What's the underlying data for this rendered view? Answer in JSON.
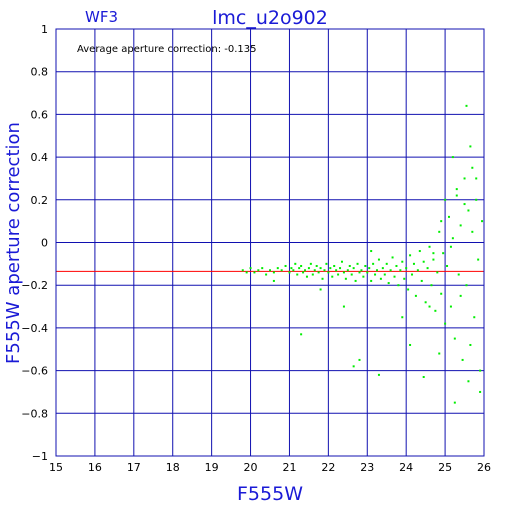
{
  "chart_data": {
    "type": "scatter",
    "panel_label": "WF3",
    "title": "lmc_u2o902",
    "annotation": "Average aperture correction: -0.135",
    "xlabel": "F555W",
    "ylabel": "F555W aperture correction",
    "xlim": [
      15,
      26
    ],
    "ylim": [
      -1,
      1
    ],
    "x_ticks": [
      "15",
      "16",
      "17",
      "18",
      "19",
      "20",
      "21",
      "22",
      "23",
      "24",
      "25",
      "26"
    ],
    "y_ticks": [
      "1",
      "0.8",
      "0.6",
      "0.4",
      "0.2",
      "0",
      "−0.2",
      "−0.4",
      "−0.6",
      "−0.8",
      "−1"
    ],
    "grid": true,
    "reference_line": {
      "y": -0.135,
      "color": "#ff0000"
    },
    "colors": {
      "points": "#00ee00",
      "grid": "#1010b0",
      "labels": "#1a1ad6"
    },
    "series": [
      {
        "values": [
          [
            19.8,
            -0.13
          ],
          [
            19.9,
            -0.14
          ],
          [
            20.0,
            -0.12
          ],
          [
            20.1,
            -0.14
          ],
          [
            20.2,
            -0.13
          ],
          [
            20.3,
            -0.12
          ],
          [
            20.4,
            -0.15
          ],
          [
            20.5,
            -0.13
          ],
          [
            20.6,
            -0.14
          ],
          [
            20.7,
            -0.12
          ],
          [
            20.8,
            -0.13
          ],
          [
            20.9,
            -0.11
          ],
          [
            21.0,
            -0.14
          ],
          [
            21.05,
            -0.12
          ],
          [
            21.1,
            -0.13
          ],
          [
            21.15,
            -0.1
          ],
          [
            21.2,
            -0.15
          ],
          [
            21.25,
            -0.12
          ],
          [
            21.3,
            -0.11
          ],
          [
            21.35,
            -0.14
          ],
          [
            21.4,
            -0.13
          ],
          [
            21.45,
            -0.16
          ],
          [
            21.5,
            -0.12
          ],
          [
            21.55,
            -0.1
          ],
          [
            21.6,
            -0.15
          ],
          [
            21.65,
            -0.13
          ],
          [
            21.7,
            -0.11
          ],
          [
            21.75,
            -0.14
          ],
          [
            21.8,
            -0.12
          ],
          [
            21.85,
            -0.17
          ],
          [
            21.9,
            -0.13
          ],
          [
            21.95,
            -0.1
          ],
          [
            22.0,
            -0.14
          ],
          [
            22.05,
            -0.12
          ],
          [
            22.1,
            -0.16
          ],
          [
            22.15,
            -0.11
          ],
          [
            22.2,
            -0.13
          ],
          [
            22.25,
            -0.15
          ],
          [
            22.3,
            -0.12
          ],
          [
            22.35,
            -0.09
          ],
          [
            22.4,
            -0.14
          ],
          [
            22.45,
            -0.17
          ],
          [
            22.5,
            -0.13
          ],
          [
            22.55,
            -0.11
          ],
          [
            22.6,
            -0.15
          ],
          [
            22.65,
            -0.12
          ],
          [
            22.7,
            -0.18
          ],
          [
            22.75,
            -0.1
          ],
          [
            22.8,
            -0.14
          ],
          [
            22.85,
            -0.13
          ],
          [
            22.9,
            -0.16
          ],
          [
            22.95,
            -0.11
          ],
          [
            23.0,
            -0.14
          ],
          [
            23.05,
            -0.12
          ],
          [
            23.1,
            -0.18
          ],
          [
            23.15,
            -0.1
          ],
          [
            23.2,
            -0.15
          ],
          [
            23.25,
            -0.13
          ],
          [
            23.3,
            -0.08
          ],
          [
            23.35,
            -0.17
          ],
          [
            23.4,
            -0.12
          ],
          [
            23.45,
            -0.15
          ],
          [
            23.5,
            -0.1
          ],
          [
            23.55,
            -0.19
          ],
          [
            23.6,
            -0.13
          ],
          [
            23.65,
            -0.07
          ],
          [
            23.7,
            -0.16
          ],
          [
            23.75,
            -0.11
          ],
          [
            23.8,
            -0.2
          ],
          [
            23.85,
            -0.13
          ],
          [
            23.9,
            -0.09
          ],
          [
            23.95,
            -0.17
          ],
          [
            24.0,
            -0.12
          ],
          [
            24.05,
            -0.22
          ],
          [
            24.1,
            -0.06
          ],
          [
            24.15,
            -0.15
          ],
          [
            24.2,
            -0.1
          ],
          [
            24.25,
            -0.25
          ],
          [
            24.3,
            -0.13
          ],
          [
            24.35,
            -0.04
          ],
          [
            24.4,
            -0.18
          ],
          [
            24.45,
            -0.09
          ],
          [
            24.5,
            -0.28
          ],
          [
            24.55,
            -0.12
          ],
          [
            24.6,
            -0.02
          ],
          [
            24.65,
            -0.2
          ],
          [
            24.7,
            -0.08
          ],
          [
            24.75,
            -0.32
          ],
          [
            24.8,
            -0.14
          ],
          [
            24.85,
            0.05
          ],
          [
            24.9,
            -0.24
          ],
          [
            24.95,
            -0.05
          ],
          [
            25.0,
            -0.38
          ],
          [
            25.05,
            -0.11
          ],
          [
            25.1,
            0.12
          ],
          [
            25.15,
            -0.3
          ],
          [
            25.2,
            0.02
          ],
          [
            25.25,
            -0.45
          ],
          [
            25.3,
            0.22
          ],
          [
            25.35,
            -0.15
          ],
          [
            25.4,
            0.08
          ],
          [
            25.45,
            -0.55
          ],
          [
            25.5,
            0.3
          ],
          [
            25.55,
            -0.2
          ],
          [
            25.6,
            0.15
          ],
          [
            25.65,
            -0.48
          ],
          [
            25.7,
            0.05
          ],
          [
            25.75,
            -0.35
          ],
          [
            25.8,
            0.2
          ],
          [
            25.85,
            -0.08
          ],
          [
            25.9,
            -0.6
          ],
          [
            25.95,
            0.1
          ],
          [
            25.2,
            0.4
          ],
          [
            25.55,
            0.64
          ],
          [
            25.7,
            0.35
          ],
          [
            25.25,
            -0.75
          ],
          [
            25.6,
            -0.65
          ],
          [
            25.9,
            -0.7
          ],
          [
            24.85,
            -0.52
          ],
          [
            24.1,
            -0.48
          ],
          [
            22.65,
            -0.58
          ],
          [
            22.8,
            -0.55
          ],
          [
            23.3,
            -0.62
          ],
          [
            24.45,
            -0.63
          ],
          [
            21.3,
            -0.43
          ],
          [
            24.7,
            -0.05
          ],
          [
            25.0,
            0.2
          ],
          [
            25.3,
            0.25
          ],
          [
            25.5,
            0.18
          ],
          [
            25.65,
            0.45
          ],
          [
            24.9,
            0.1
          ],
          [
            25.15,
            -0.02
          ],
          [
            25.8,
            0.3
          ],
          [
            25.4,
            -0.25
          ],
          [
            24.6,
            -0.3
          ],
          [
            23.9,
            -0.35
          ],
          [
            22.4,
            -0.3
          ],
          [
            21.8,
            -0.22
          ],
          [
            20.6,
            -0.18
          ],
          [
            23.1,
            -0.04
          ]
        ]
      }
    ]
  }
}
